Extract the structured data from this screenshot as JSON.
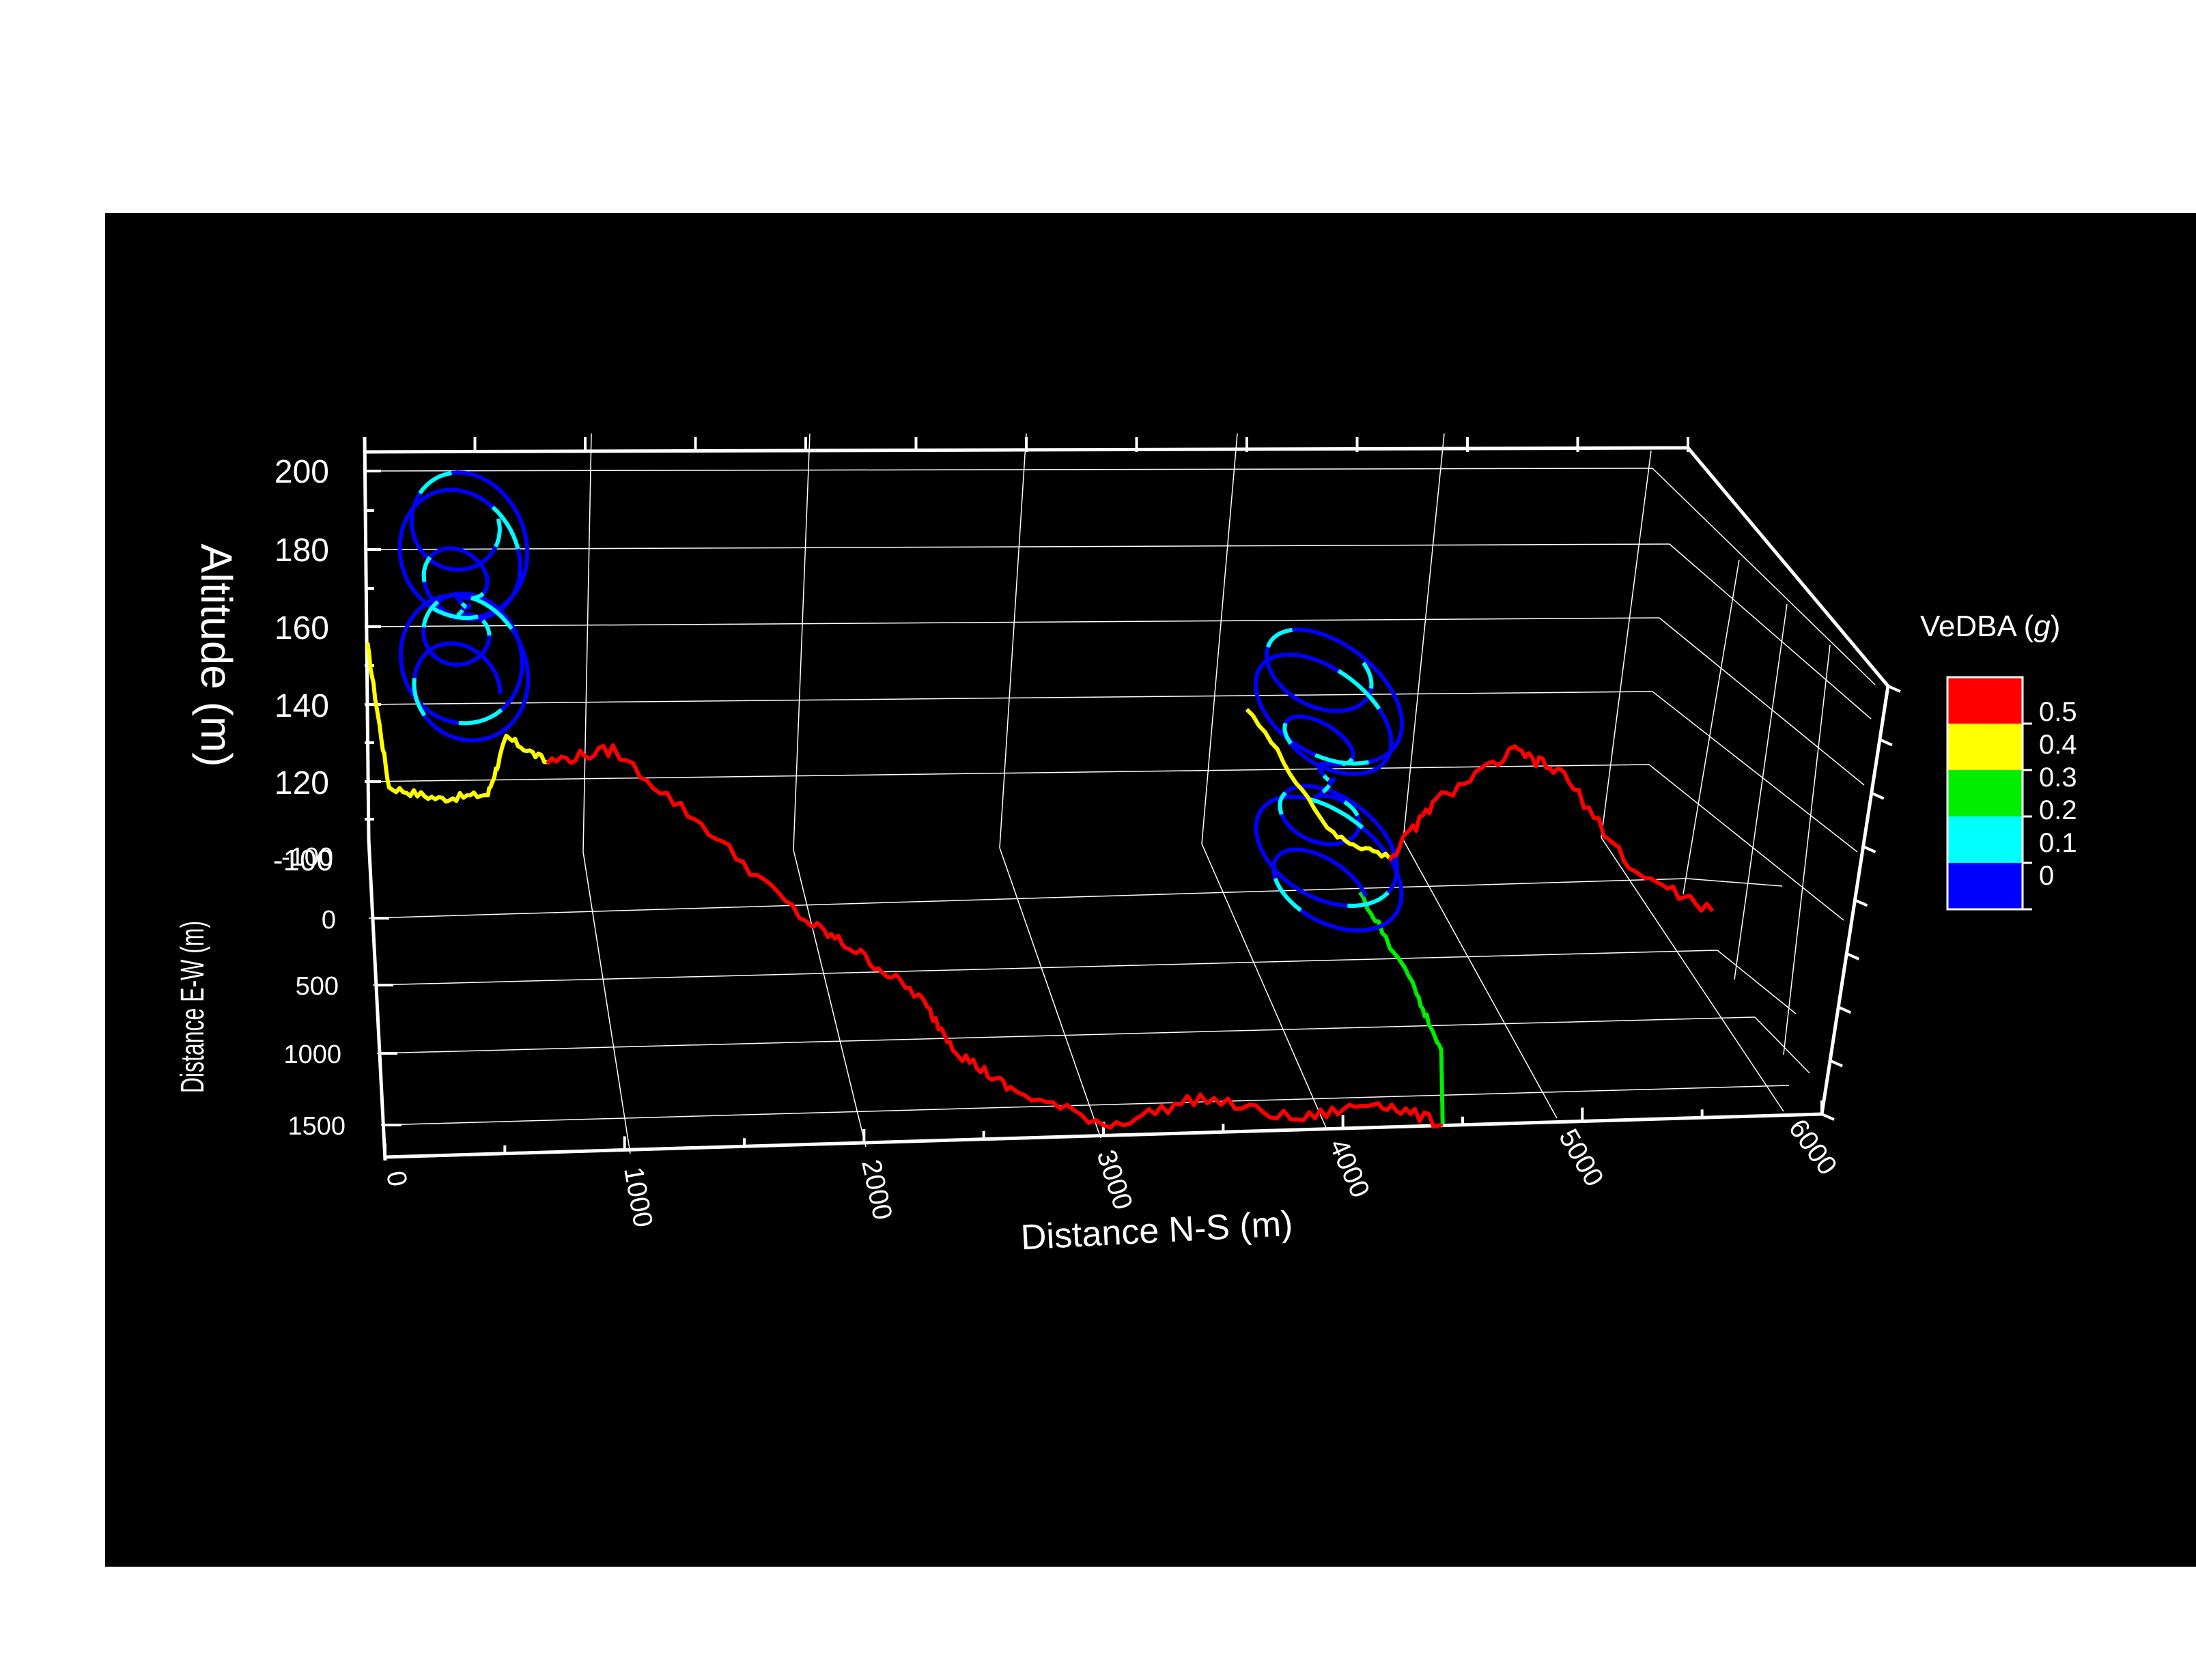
{
  "chart_data": {
    "type": "line",
    "subtype": "3d-trajectory",
    "title": "",
    "xlabel": "Distance N-S (m)",
    "ylabel": "Distance E-W (m)",
    "zlabel": "Altitude (m)",
    "xlim": [
      0,
      6000
    ],
    "ylim": [
      -100,
      1500
    ],
    "zlim": [
      100,
      200
    ],
    "x_ticks": [
      "0",
      "1000",
      "2000",
      "3000",
      "4000",
      "5000",
      "6000"
    ],
    "y_ticks": [
      "-100",
      "0",
      "500",
      "1000",
      "1500"
    ],
    "z_ticks": [
      "200",
      "180",
      "160",
      "140",
      "120",
      "-100"
    ],
    "grid": true,
    "background": "#000000",
    "colorbar": {
      "label": "VeDBA (g)",
      "label_main": "VeDBA (",
      "label_var": "g",
      "label_close": ")",
      "ticks": [
        "0.5",
        "0.4",
        "0.3",
        "0.2",
        "0.1",
        "0"
      ],
      "bands": [
        {
          "from": 0.4,
          "to": 0.5,
          "color": "#ff0000"
        },
        {
          "from": 0.3,
          "to": 0.4,
          "color": "#ffff00"
        },
        {
          "from": 0.2,
          "to": 0.3,
          "color": "#00ee00"
        },
        {
          "from": 0.1,
          "to": 0.2,
          "color": "#00ffff"
        },
        {
          "from": 0.0,
          "to": 0.1,
          "color": "#0000ff"
        }
      ],
      "legend_position": "right"
    },
    "series": [
      {
        "color": "#ffff00",
        "points": [
          [
            0,
            0,
            155
          ],
          [
            80,
            300,
            134
          ],
          [
            300,
            400,
            136
          ],
          [
            520,
            420,
            138
          ],
          [
            620,
            250,
            144
          ],
          [
            800,
            300,
            140
          ]
        ]
      },
      {
        "color": "#0000ff",
        "spiral": true,
        "center": [
          450,
          50
        ],
        "altitude_range": [
          145,
          190
        ]
      },
      {
        "color": "#ff0000",
        "points": [
          [
            800,
            300,
            140
          ],
          [
            1100,
            300,
            143
          ],
          [
            1500,
            500,
            132
          ],
          [
            1900,
            700,
            118
          ],
          [
            2100,
            800,
            115
          ],
          [
            2350,
            900,
            108
          ],
          [
            2500,
            1000,
            98
          ],
          [
            2700,
            1100,
            93
          ],
          [
            3100,
            1200,
            88
          ],
          [
            3500,
            1150,
            92
          ],
          [
            3900,
            1200,
            88
          ],
          [
            4250,
            1180,
            91
          ],
          [
            4500,
            1250,
            88
          ]
        ]
      },
      {
        "color": "#00ee00",
        "points": [
          [
            4500,
            1250,
            88
          ],
          [
            4550,
            1100,
            100
          ],
          [
            4500,
            900,
            108
          ],
          [
            4380,
            600,
            118
          ]
        ]
      },
      {
        "color": "#0000ff",
        "spiral": true,
        "center": [
          4300,
          450
        ],
        "altitude_range": [
          110,
          170
        ]
      },
      {
        "color": "#ffff00",
        "points": [
          [
            4000,
            250,
            150
          ],
          [
            4300,
            500,
            128
          ],
          [
            4550,
            500,
            122
          ]
        ]
      },
      {
        "color": "#ff0000",
        "points": [
          [
            4550,
            500,
            122
          ],
          [
            4800,
            400,
            132
          ],
          [
            5200,
            300,
            140
          ],
          [
            5400,
            350,
            136
          ],
          [
            5600,
            600,
            122
          ],
          [
            5900,
            700,
            116
          ]
        ]
      }
    ]
  }
}
